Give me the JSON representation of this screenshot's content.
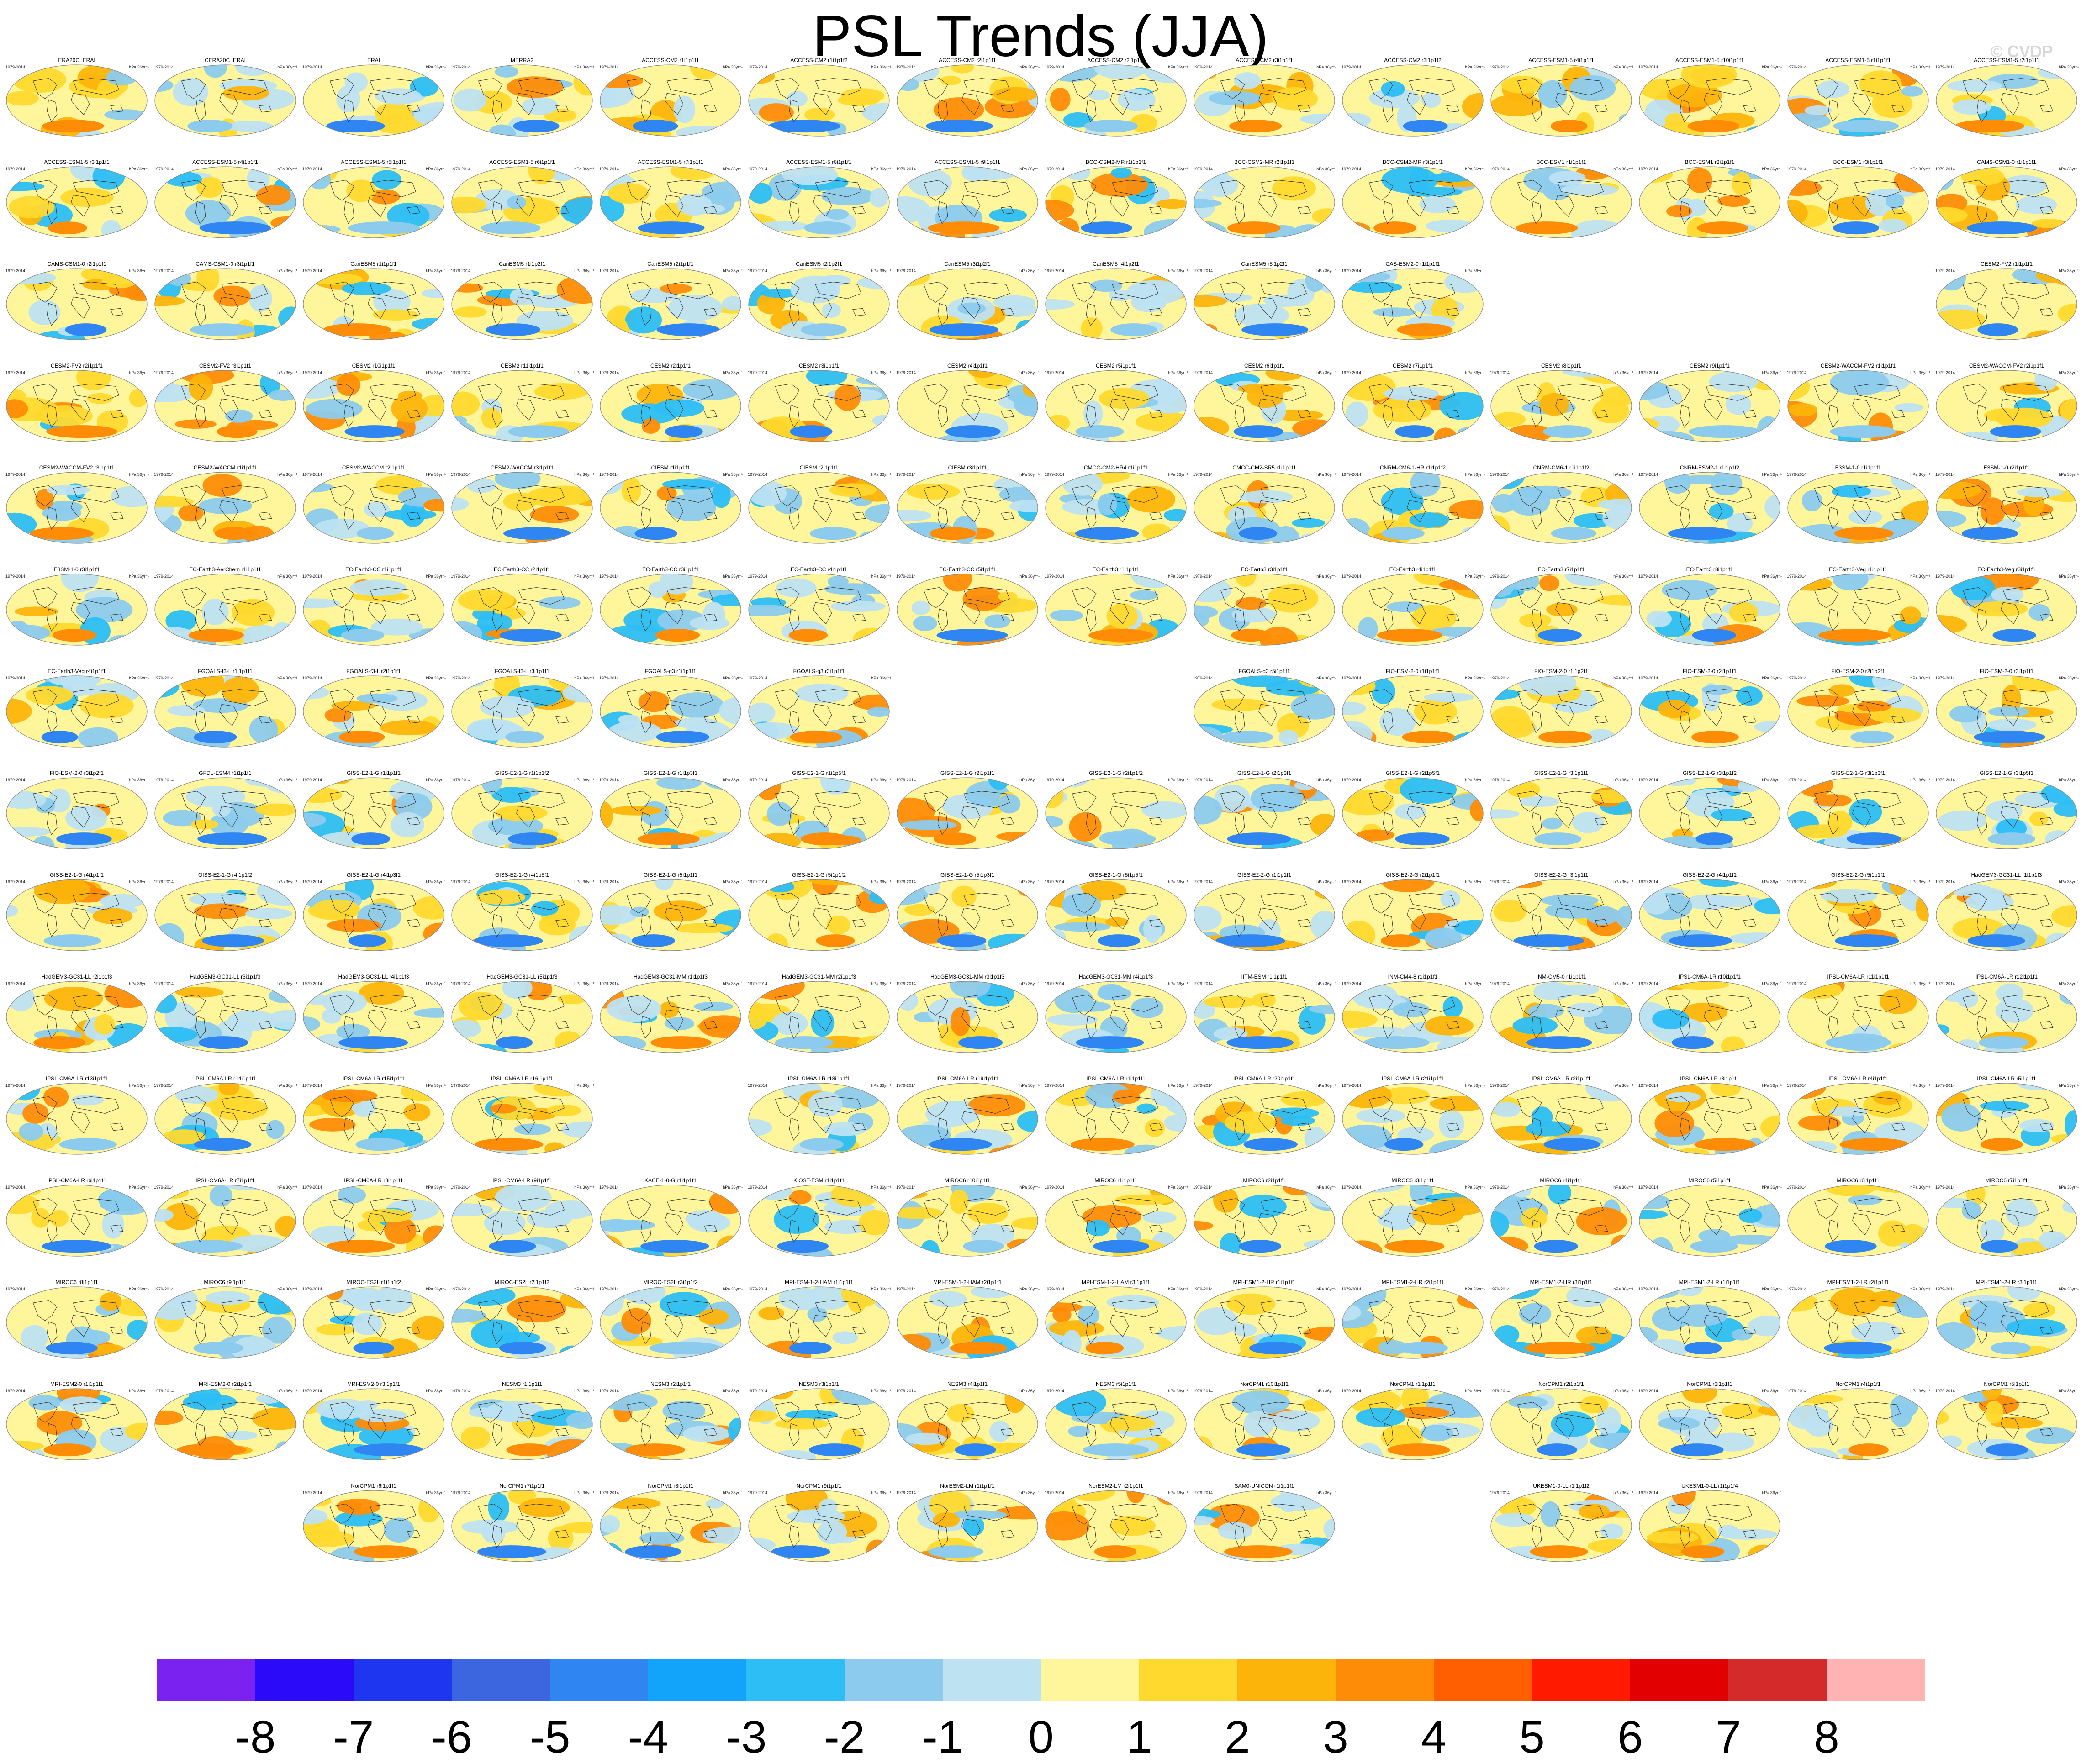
{
  "chart_data": {
    "type": "heatmap",
    "title": "PSL Trends (JJA)",
    "watermark": "© CVDP",
    "units": "hPa 36yr⁻¹",
    "default_period": "1979-2014",
    "colorbar": {
      "ticks": [
        "-8",
        "-7",
        "-6",
        "-5",
        "-4",
        "-3",
        "-2",
        "-1",
        "0",
        "1",
        "2",
        "3",
        "4",
        "5",
        "6",
        "7",
        "8"
      ],
      "colors": [
        "#7a22f0",
        "#2b0afa",
        "#1e36f0",
        "#3b66e0",
        "#2f86f2",
        "#12a3fa",
        "#2cbef5",
        "#8ccbee",
        "#bde2f2",
        "#fff59a",
        "#ffd92e",
        "#fdb40a",
        "#ff8c06",
        "#ff5f00",
        "#ff1a00",
        "#e20000",
        "#d42a2a",
        "#ffb3b3"
      ]
    },
    "rows": [
      [
        "ERA20C_ERAI",
        "CERA20C_ERAI",
        "ERAI",
        "MERRA2",
        "ACCESS-CM2 r1i1p1f1",
        "ACCESS-CM2 r1i1p1f2",
        "ACCESS-CM2 r2i1p1f1",
        "ACCESS-CM2 r2i1p1f2",
        "ACCESS-CM2 r3i1p1f1",
        "ACCESS-CM2 r3i1p1f2",
        "ACCESS-ESM1-5 r4i1p1f1",
        "ACCESS-ESM1-5 r10i1p1f1",
        "ACCESS-ESM1-5 r1i1p1f1",
        "ACCESS-ESM1-5 r2i1p1f1"
      ],
      [
        "ACCESS-ESM1-5 r3i1p1f1",
        "ACCESS-ESM1-5 r4i1p1f1",
        "ACCESS-ESM1-5 r5i1p1f1",
        "ACCESS-ESM1-5 r6i1p1f1",
        "ACCESS-ESM1-5 r7i1p1f1",
        "ACCESS-ESM1-5 r8i1p1f1",
        "ACCESS-ESM1-5 r9i1p1f1",
        "BCC-CSM2-MR r1i1p1f1",
        "BCC-CSM2-MR r2i1p1f1",
        "BCC-CSM2-MR r3i1p1f1",
        "BCC-ESM1 r1i1p1f1",
        "BCC-ESM1 r2i1p1f1",
        "BCC-ESM1 r3i1p1f1",
        "CAMS-CSM1-0 r1i1p1f1"
      ],
      [
        "CAMS-CSM1-0 r2i1p1f1",
        "CAMS-CSM1-0 r3i1p1f1",
        "CanESM5 r1i1p1f1",
        "CanESM5 r1i1p2f1",
        "CanESM5 r2i1p1f1",
        "CanESM5 r2i1p2f1",
        "CanESM5 r3i1p2f1",
        "CanESM5 r4i1p2f1",
        "CanESM5 r5i1p2f1",
        "CAS-ESM2-0 r1i1p1f1",
        "",
        "",
        "",
        "CESM2-FV2 r1i1p1f1"
      ],
      [
        "CESM2-FV2 r2i1p1f1",
        "CESM2-FV2 r3i1p1f1",
        "CESM2 r10i1p1f1",
        "CESM2 r11i1p1f1",
        "CESM2 r2i1p1f1",
        "CESM2 r3i1p1f1",
        "CESM2 r4i1p1f1",
        "CESM2 r5i1p1f1",
        "CESM2 r6i1p1f1",
        "CESM2 r7i1p1f1",
        "CESM2 r8i1p1f1",
        "CESM2 r9i1p1f1",
        "CESM2-WACCM-FV2 r1i1p1f1",
        "CESM2-WACCM-FV2 r2i1p1f1"
      ],
      [
        "CESM2-WACCM-FV2 r3i1p1f1",
        "CESM2-WACCM r1i1p1f1",
        "CESM2-WACCM r2i1p1f1",
        "CESM2-WACCM r3i1p1f1",
        "CIESM r1i1p1f1",
        "CIESM r2i1p1f1",
        "CIESM r3i1p1f1",
        "CMCC-CM2-HR4 r1i1p1f1",
        "CMCC-CM2-SR5 r1i1p1f1",
        "CNRM-CM6-1-HR r1i1p1f2",
        "CNRM-CM6-1 r1i1p1f2",
        "CNRM-ESM2-1 r1i1p1f2",
        "E3SM-1-0 r1i1p1f1",
        "E3SM-1-0 r2i1p1f1"
      ],
      [
        "E3SM-1-0 r3i1p1f1",
        "EC-Earth3-AerChem r1i1p1f1",
        "EC-Earth3-CC r1i1p1f1",
        "EC-Earth3-CC r2i1p1f1",
        "EC-Earth3-CC r3i1p1f1",
        "EC-Earth3-CC r4i1p1f1",
        "EC-Earth3-CC r5i1p1f1",
        "EC-Earth3 r1i1p1f1",
        "EC-Earth3 r3i1p1f1",
        "EC-Earth3 r4i1p1f1",
        "EC-Earth3 r7i1p1f1",
        "EC-Earth3 r8i1p1f1",
        "EC-Earth3-Veg r1i1p1f1",
        "EC-Earth3-Veg r3i1p1f1"
      ],
      [
        "EC-Earth3-Veg r4i1p1f1",
        "FGOALS-f3-L r1i1p1f1",
        "FGOALS-f3-L r2i1p1f1",
        "FGOALS-f3-L r3i1p1f1",
        "FGOALS-g3 r1i1p1f1",
        "FGOALS-g3 r3i1p1f1",
        "",
        "",
        "FGOALS-g3 r5i1p1f1",
        "FIO-ESM-2-0 r1i1p1f1",
        "FIO-ESM-2-0 r1i1p2f1",
        "FIO-ESM-2-0 r2i1p1f1",
        "FIO-ESM-2-0 r2i1p2f1",
        "FIO-ESM-2-0 r3i1p1f1"
      ],
      [
        "FIO-ESM-2-0 r3i1p2f1",
        "GFDL-ESM4 r1i1p1f1",
        "GISS-E2-1-G r1i1p1f1",
        "GISS-E2-1-G r1i1p1f2",
        "GISS-E2-1-G r1i1p3f1",
        "GISS-E2-1-G r1i1p5f1",
        "GISS-E2-1-G r2i1p1f1",
        "GISS-E2-1-G r2i1p1f2",
        "GISS-E2-1-G r2i1p3f1",
        "GISS-E2-1-G r2i1p5f1",
        "GISS-E2-1-G r3i1p1f1",
        "GISS-E2-1-G r3i1p1f2",
        "GISS-E2-1-G r3i1p3f1",
        "GISS-E2-1-G r3i1p5f1"
      ],
      [
        "GISS-E2-1-G r4i1p1f1",
        "GISS-E2-1-G r4i1p1f2",
        "GISS-E2-1-G r4i1p3f1",
        "GISS-E2-1-G r4i1p5f1",
        "GISS-E2-1-G r5i1p1f1",
        "GISS-E2-1-G r5i1p1f2",
        "GISS-E2-1-G r5i1p3f1",
        "GISS-E2-1-G r5i1p5f1",
        "GISS-E2-2-G r1i1p1f1",
        "GISS-E2-2-G r2i1p1f1",
        "GISS-E2-2-G r3i1p1f1",
        "GISS-E2-2-G r4i1p1f1",
        "GISS-E2-2-G r5i1p1f1",
        "HadGEM3-GC31-LL r1i1p1f3"
      ],
      [
        "HadGEM3-GC31-LL r2i1p1f3",
        "HadGEM3-GC31-LL r3i1p1f3",
        "HadGEM3-GC31-LL r4i1p1f3",
        "HadGEM3-GC31-LL r5i1p1f3",
        "HadGEM3-GC31-MM r1i1p1f3",
        "HadGEM3-GC31-MM r2i1p1f3",
        "HadGEM3-GC31-MM r3i1p1f3",
        "HadGEM3-GC31-MM r4i1p1f3",
        "IITM-ESM r1i1p1f1",
        "INM-CM4-8 r1i1p1f1",
        "INM-CM5-0 r1i1p1f1",
        "IPSL-CM6A-LR r10i1p1f1",
        "IPSL-CM6A-LR r11i1p1f1",
        "IPSL-CM6A-LR r12i1p1f1"
      ],
      [
        "IPSL-CM6A-LR r13i1p1f1",
        "IPSL-CM6A-LR r14i1p1f1",
        "IPSL-CM6A-LR r15i1p1f1",
        "IPSL-CM6A-LR r16i1p1f1",
        "",
        "IPSL-CM6A-LR r18i1p1f1",
        "IPSL-CM6A-LR r19i1p1f1",
        "IPSL-CM6A-LR r1i1p1f1",
        "IPSL-CM6A-LR r20i1p1f1",
        "IPSL-CM6A-LR r21i1p1f1",
        "IPSL-CM6A-LR r2i1p1f1",
        "IPSL-CM6A-LR r3i1p1f1",
        "IPSL-CM6A-LR r4i1p1f1",
        "IPSL-CM6A-LR r5i1p1f1"
      ],
      [
        "IPSL-CM6A-LR r6i1p1f1",
        "IPSL-CM6A-LR r7i1p1f1",
        "IPSL-CM6A-LR r8i1p1f1",
        "IPSL-CM6A-LR r9i1p1f1",
        "KACE-1-0-G r1i1p1f1",
        "KIOST-ESM r1i1p1f1",
        "MIROC6 r10i1p1f1",
        "MIROC6 r1i1p1f1",
        "MIROC6 r2i1p1f1",
        "MIROC6 r3i1p1f1",
        "MIROC6 r4i1p1f1",
        "MIROC6 r5i1p1f1",
        "MIROC6 r6i1p1f1",
        "MIROC6 r7i1p1f1"
      ],
      [
        "MIROC6 r8i1p1f1",
        "MIROC6 r9i1p1f1",
        "MIROC-ES2L r1i1p1f2",
        "MIROC-ES2L r2i1p1f2",
        "MIROC-ES2L r3i1p1f2",
        "MPI-ESM-1-2-HAM r1i1p1f1",
        "MPI-ESM-1-2-HAM r2i1p1f1",
        "MPI-ESM-1-2-HAM r3i1p1f1",
        "MPI-ESM1-2-HR r1i1p1f1",
        "MPI-ESM1-2-HR r2i1p1f1",
        "MPI-ESM1-2-HR r3i1p1f1",
        "MPI-ESM1-2-LR r1i1p1f1",
        "MPI-ESM1-2-LR r2i1p1f1",
        "MPI-ESM1-2-LR r3i1p1f1"
      ],
      [
        "MRI-ESM2-0 r1i1p1f1",
        "MRI-ESM2-0 r2i1p1f1",
        "MRI-ESM2-0 r3i1p1f1",
        "NESM3 r1i1p1f1",
        "NESM3 r2i1p1f1",
        "NESM3 r3i1p1f1",
        "NESM3 r4i1p1f1",
        "NESM3 r5i1p1f1",
        "NorCPM1 r10i1p1f1",
        "NorCPM1 r1i1p1f1",
        "NorCPM1 r2i1p1f1",
        "NorCPM1 r3i1p1f1",
        "NorCPM1 r4i1p1f1",
        "NorCPM1 r5i1p1f1"
      ],
      [
        "",
        "",
        "NorCPM1 r6i1p1f1",
        "NorCPM1 r7i1p1f1",
        "NorCPM1 r8i1p1f1",
        "NorCPM1 r9i1p1f1",
        "NorESM2-LM r1i1p1f1",
        "NorESM2-LM r2i1p1f1",
        "SAM0-UNICON r1i1p1f1",
        "",
        "UKESM1-0-LL r1i1p1f2",
        "UKESM1-0-LL r1i1p1f4",
        "",
        ""
      ]
    ]
  }
}
